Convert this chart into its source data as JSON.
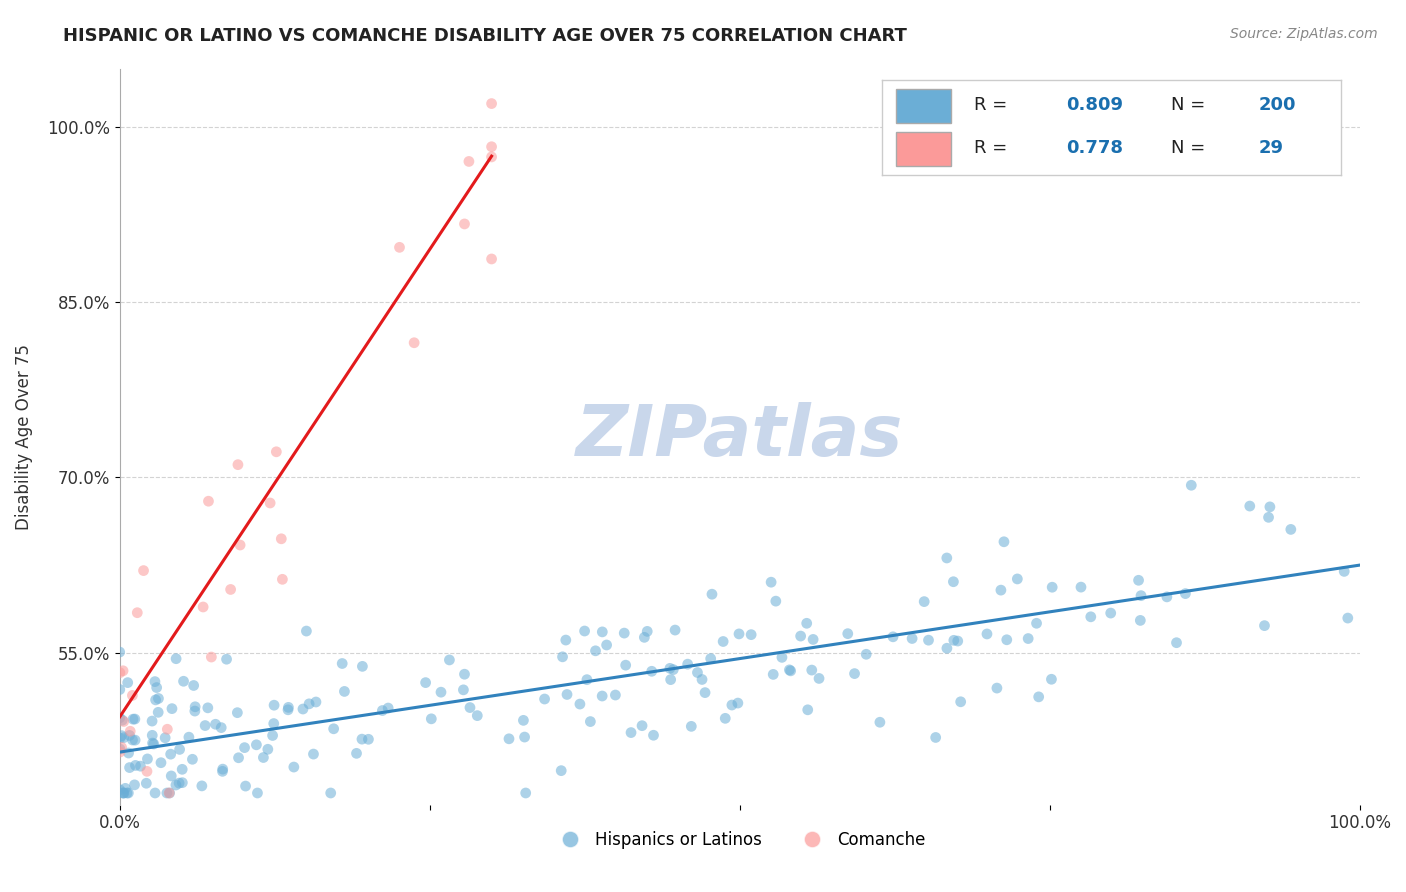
{
  "title": "HISPANIC OR LATINO VS COMANCHE DISABILITY AGE OVER 75 CORRELATION CHART",
  "source_text": "Source: ZipAtlas.com",
  "ylabel": "Disability Age Over 75",
  "xlabel": "",
  "xlim": [
    0.0,
    1.0
  ],
  "ylim": [
    0.42,
    1.05
  ],
  "yticks": [
    0.55,
    0.7,
    0.85,
    1.0
  ],
  "ytick_labels": [
    "55.0%",
    "70.0%",
    "85.0%",
    "100.0%"
  ],
  "xticks": [
    0.0,
    0.25,
    0.5,
    0.75,
    1.0
  ],
  "xtick_labels": [
    "0.0%",
    "",
    "",
    "",
    "100.0%"
  ],
  "legend_blue_R": "0.809",
  "legend_blue_N": "200",
  "legend_pink_R": "0.778",
  "legend_pink_N": "29",
  "blue_color": "#6baed6",
  "pink_color": "#fb9a99",
  "blue_line_color": "#3182bd",
  "pink_line_color": "#e31a1c",
  "watermark": "ZIPatlas",
  "watermark_color": "#c0d0e8",
  "blue_scatter_alpha": 0.55,
  "pink_scatter_alpha": 0.55,
  "marker_size": 60,
  "blue_line_x0": 0.0,
  "blue_line_y0": 0.465,
  "blue_line_x1": 1.0,
  "blue_line_y1": 0.625,
  "pink_line_x0": 0.0,
  "pink_line_y0": 0.495,
  "pink_line_x1": 0.3,
  "pink_line_y1": 0.975
}
